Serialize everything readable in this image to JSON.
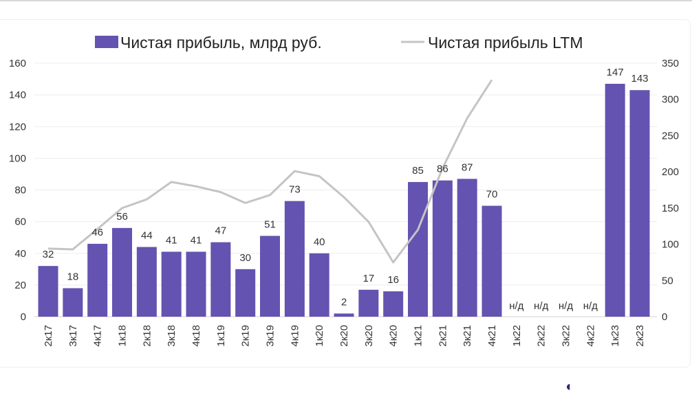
{
  "chart_data": {
    "type": "bar",
    "categories": [
      "2к17",
      "3к17",
      "4к17",
      "1к18",
      "2к18",
      "3к18",
      "4к18",
      "1к19",
      "2к19",
      "3к19",
      "4к19",
      "1к20",
      "2к20",
      "3к20",
      "4к20",
      "1к21",
      "2к21",
      "3к21",
      "4к21",
      "1к22",
      "2к22",
      "3к22",
      "4к22",
      "1к23",
      "2к23"
    ],
    "series": [
      {
        "name": "Чистая прибыль, млрд руб.",
        "type": "bar",
        "axis": "left",
        "color": "#6453b0",
        "values": [
          32,
          18,
          46,
          56,
          44,
          41,
          41,
          47,
          30,
          51,
          73,
          40,
          2,
          17,
          16,
          85,
          86,
          87,
          70,
          null,
          null,
          null,
          null,
          147,
          143
        ],
        "labels": [
          "32",
          "18",
          "46",
          "56",
          "44",
          "41",
          "41",
          "47",
          "30",
          "51",
          "73",
          "40",
          "2",
          "17",
          "16",
          "85",
          "86",
          "87",
          "70",
          "н/д",
          "н/д",
          "н/д",
          "н/д",
          "147",
          "143"
        ]
      },
      {
        "name": "Чистая прибыль LTM",
        "type": "line",
        "axis": "right",
        "color": "#c4c4c4",
        "values": [
          94,
          93,
          121,
          150,
          162,
          186,
          180,
          172,
          157,
          168,
          201,
          194,
          165,
          131,
          75,
          120,
          205,
          274,
          327,
          null,
          null,
          null,
          null,
          null,
          null
        ]
      }
    ],
    "y_left": {
      "range": [
        0,
        160
      ],
      "ticks": [
        "0",
        "20",
        "40",
        "60",
        "80",
        "100",
        "120",
        "140",
        "160"
      ]
    },
    "y_right": {
      "range": [
        0,
        350
      ],
      "ticks": [
        "0",
        "50",
        "100",
        "150",
        "200",
        "250",
        "300",
        "350"
      ]
    },
    "grid": true,
    "legend": "top"
  }
}
